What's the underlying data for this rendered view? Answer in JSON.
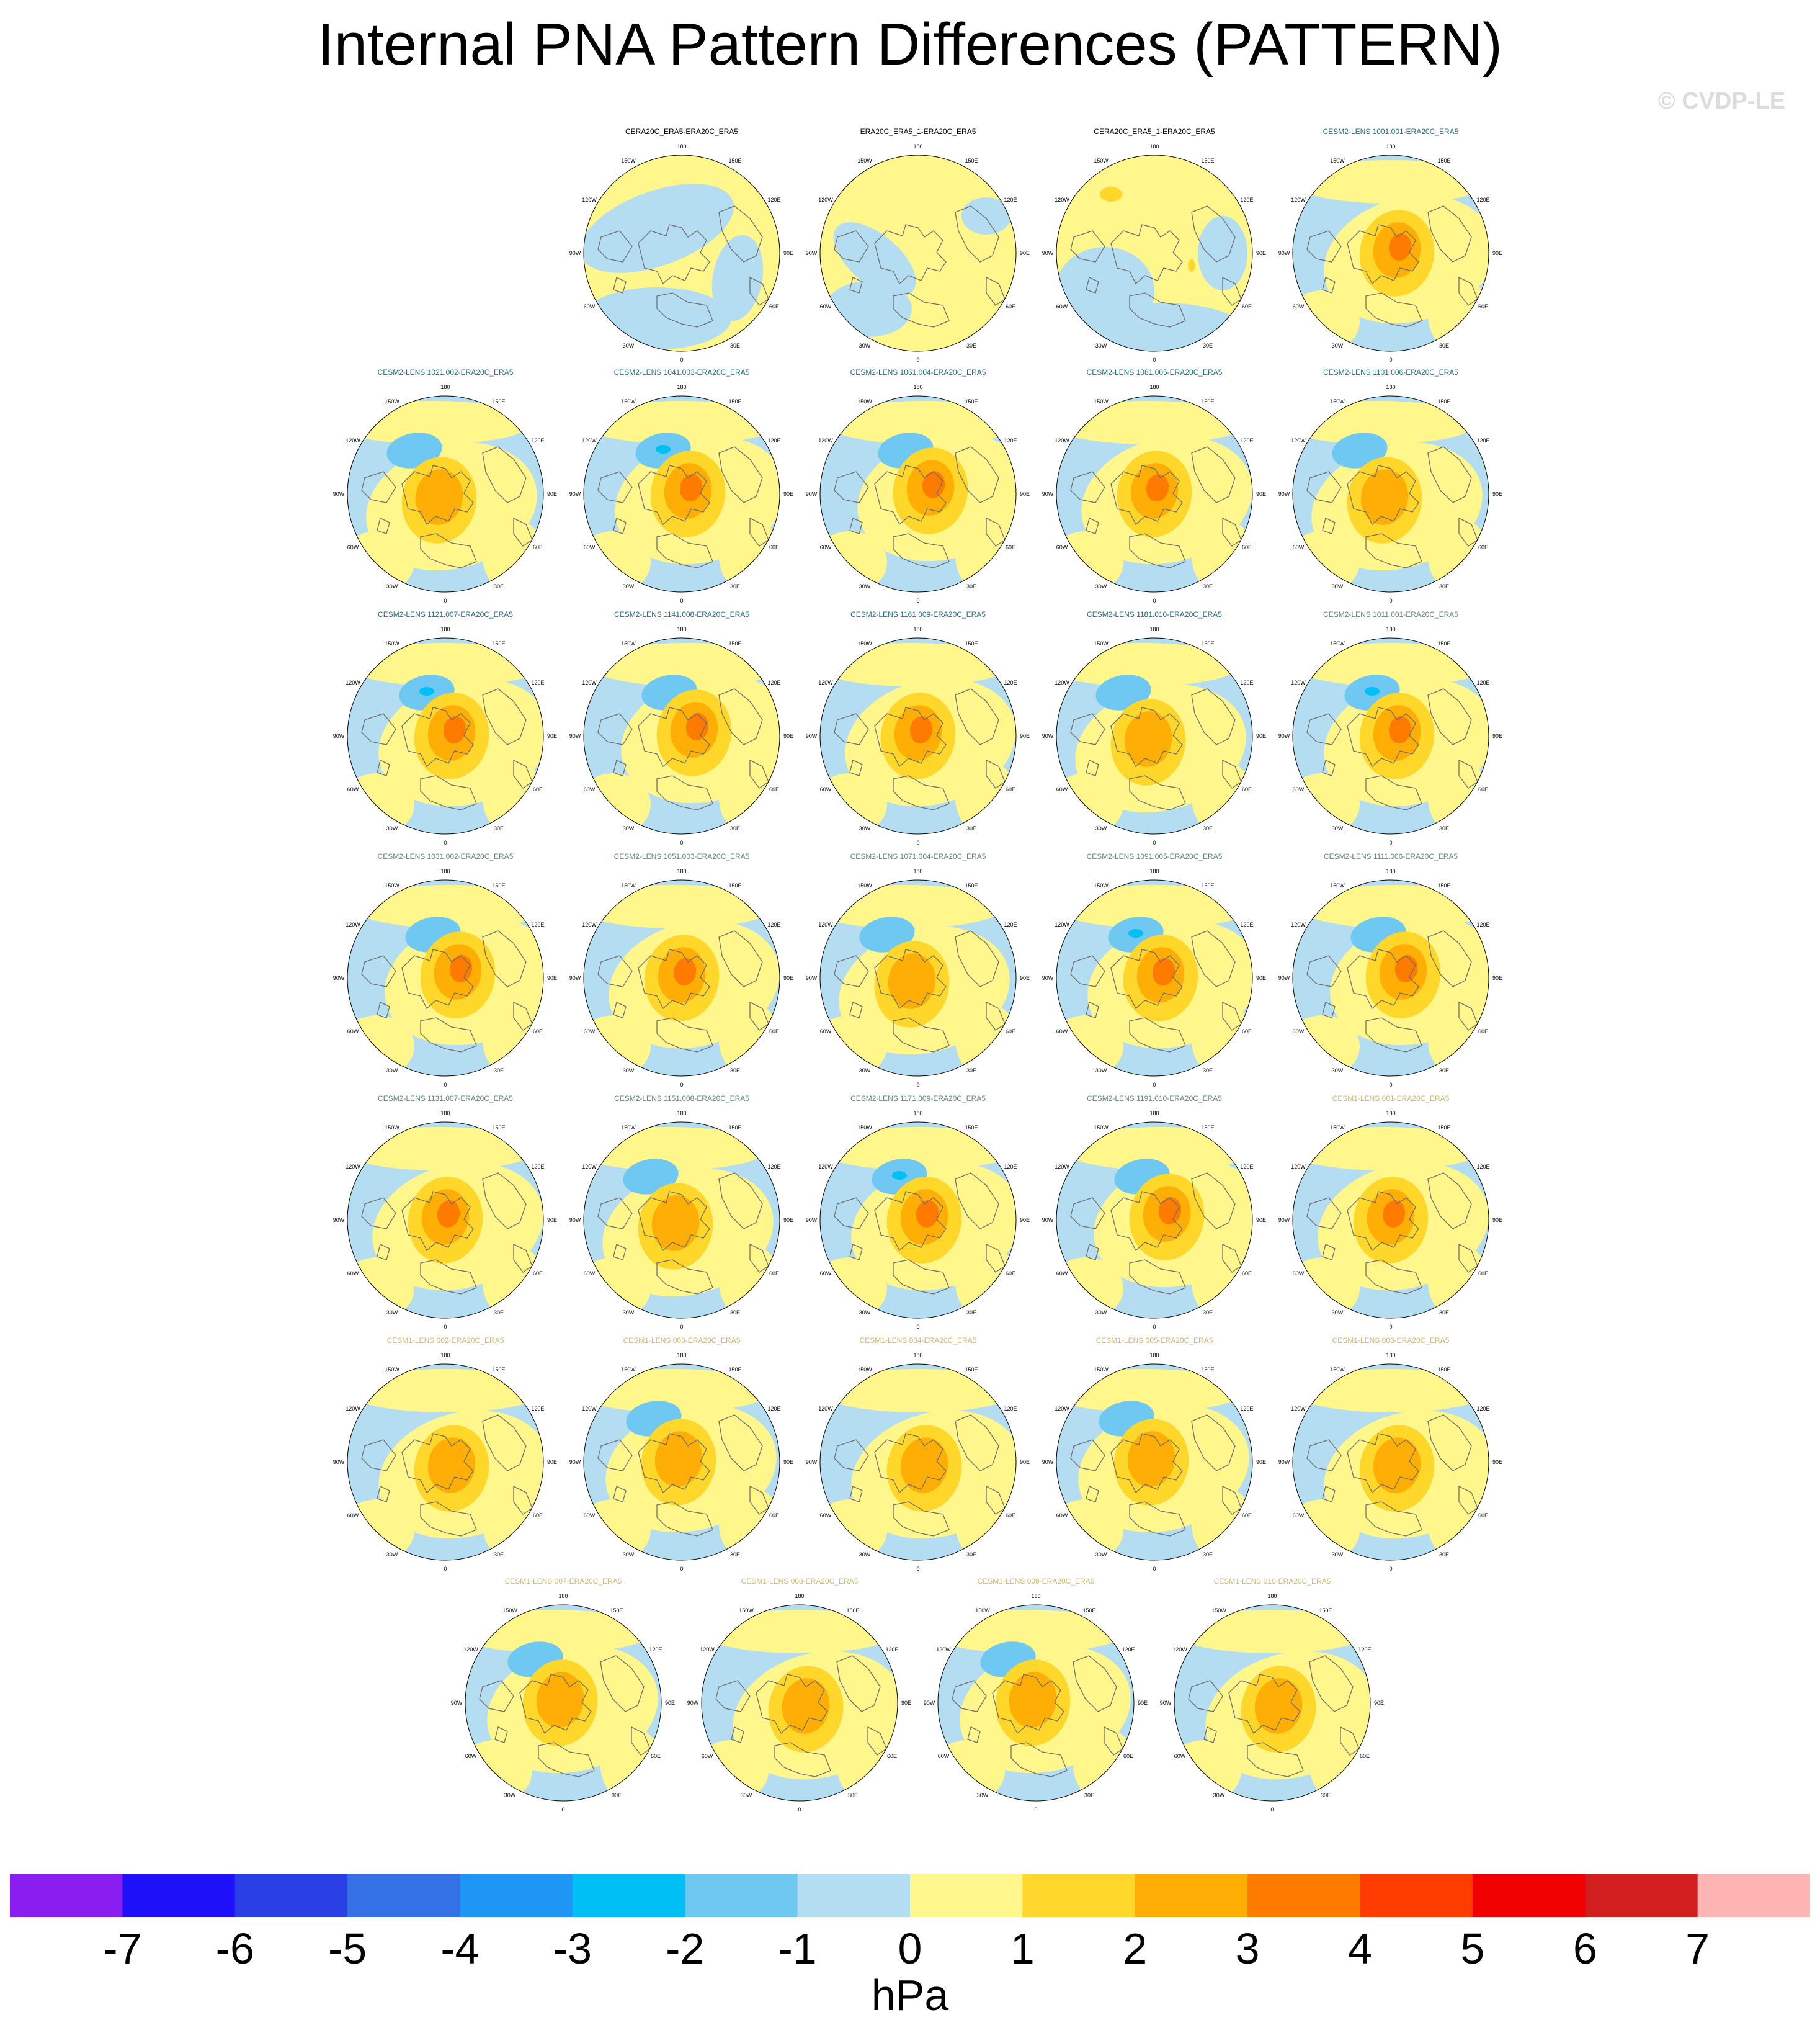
{
  "title": "Internal PNA Pattern Differences (PATTERN)",
  "copyright": "© CVDP-LE",
  "panels": [
    {
      "title": "CERA20C_ERA5-ERA20C_ERA5",
      "title_color": "#000000",
      "variant": 0
    },
    {
      "title": "ERA20C_ERA5_1-ERA20C_ERA5",
      "title_color": "#000000",
      "variant": 1
    },
    {
      "title": "CERA20C_ERA5_1-ERA20C_ERA5",
      "title_color": "#000000",
      "variant": 2
    },
    {
      "title": "CESM2-LENS 1001.001-ERA20C_ERA5",
      "title_color": "#1f6f8b",
      "variant": 3
    },
    {
      "title": "CESM2-LENS 1021.002-ERA20C_ERA5",
      "title_color": "#1f6f8b",
      "variant": 4
    },
    {
      "title": "CESM2-LENS 1041.003-ERA20C_ERA5",
      "title_color": "#1f6f8b",
      "variant": 5
    },
    {
      "title": "CESM2-LENS 1061.004-ERA20C_ERA5",
      "title_color": "#1f6f8b",
      "variant": 6
    },
    {
      "title": "CESM2-LENS 1081.005-ERA20C_ERA5",
      "title_color": "#1f6f8b",
      "variant": 7
    },
    {
      "title": "CESM2-LENS 1101.006-ERA20C_ERA5",
      "title_color": "#1f6f8b",
      "variant": 4
    },
    {
      "title": "CESM2-LENS 1121.007-ERA20C_ERA5",
      "title_color": "#1f6f8b",
      "variant": 5
    },
    {
      "title": "CESM2-LENS 1141.008-ERA20C_ERA5",
      "title_color": "#1f6f8b",
      "variant": 6
    },
    {
      "title": "CESM2-LENS 1161.009-ERA20C_ERA5",
      "title_color": "#1f6f8b",
      "variant": 7
    },
    {
      "title": "CESM2-LENS 1181.010-ERA20C_ERA5",
      "title_color": "#1f6f8b",
      "variant": 4
    },
    {
      "title": "CESM2-LENS 1011.001-ERA20C_ERA5",
      "title_color": "#5e8a74",
      "variant": 5
    },
    {
      "title": "CESM2-LENS 1031.002-ERA20C_ERA5",
      "title_color": "#5e8a74",
      "variant": 6
    },
    {
      "title": "CESM2-LENS 1051.003-ERA20C_ERA5",
      "title_color": "#5e8a74",
      "variant": 7
    },
    {
      "title": "CESM2-LENS 1071.004-ERA20C_ERA5",
      "title_color": "#5e8a74",
      "variant": 4
    },
    {
      "title": "CESM2-LENS 1091.005-ERA20C_ERA5",
      "title_color": "#5e8a74",
      "variant": 5
    },
    {
      "title": "CESM2-LENS 1111.006-ERA20C_ERA5",
      "title_color": "#5e8a74",
      "variant": 6
    },
    {
      "title": "CESM2-LENS 1131.007-ERA20C_ERA5",
      "title_color": "#5e8a74",
      "variant": 7
    },
    {
      "title": "CESM2-LENS 1151.008-ERA20C_ERA5",
      "title_color": "#5e8a74",
      "variant": 4
    },
    {
      "title": "CESM2-LENS 1171.009-ERA20C_ERA5",
      "title_color": "#5e8a74",
      "variant": 5
    },
    {
      "title": "CESM2-LENS 1191.010-ERA20C_ERA5",
      "title_color": "#5e8a74",
      "variant": 6
    },
    {
      "title": "CESM1-LENS 001-ERA20C_ERA5",
      "title_color": "#d2b96a",
      "variant": 7
    },
    {
      "title": "CESM1-LENS 002-ERA20C_ERA5",
      "title_color": "#d2b96a",
      "variant": 8
    },
    {
      "title": "CESM1-LENS 003-ERA20C_ERA5",
      "title_color": "#d2b96a",
      "variant": 9
    },
    {
      "title": "CESM1-LENS 004-ERA20C_ERA5",
      "title_color": "#d2b96a",
      "variant": 8
    },
    {
      "title": "CESM1-LENS 005-ERA20C_ERA5",
      "title_color": "#d2b96a",
      "variant": 9
    },
    {
      "title": "CESM1-LENS 006-ERA20C_ERA5",
      "title_color": "#d2b96a",
      "variant": 8
    },
    {
      "title": "CESM1-LENS 007-ERA20C_ERA5",
      "title_color": "#d2b96a",
      "variant": 9
    },
    {
      "title": "CESM1-LENS 008-ERA20C_ERA5",
      "title_color": "#d2b96a",
      "variant": 8
    },
    {
      "title": "CESM1-LENS 009-ERA20C_ERA5",
      "title_color": "#d2b96a",
      "variant": 9
    },
    {
      "title": "CESM1-LENS 010-ERA20C_ERA5",
      "title_color": "#d2b96a",
      "variant": 8
    }
  ],
  "longitude_labels": [
    "180",
    "150E",
    "120E",
    "90E",
    "60E",
    "30E",
    "0",
    "30W",
    "60W",
    "90W",
    "120W",
    "150W"
  ],
  "colorbar": {
    "colors": [
      "#8a1ef0",
      "#1e10f8",
      "#2b3fe6",
      "#3470e6",
      "#1e96f5",
      "#00bff5",
      "#6ec8f2",
      "#b5ddf2",
      "#fff68c",
      "#ffd72a",
      "#ffae06",
      "#ff7b00",
      "#ff3c00",
      "#f00000",
      "#d21e1e",
      "#ffb4b4"
    ],
    "labels": [
      "-7",
      "-6",
      "-5",
      "-4",
      "-3",
      "-2",
      "-1",
      "0",
      "1",
      "2",
      "3",
      "4",
      "5",
      "6",
      "7"
    ],
    "units": "hPa"
  }
}
